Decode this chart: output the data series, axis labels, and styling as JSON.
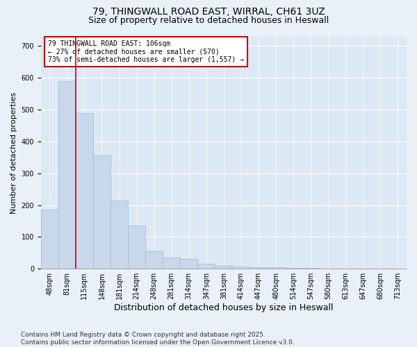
{
  "title1": "79, THINGWALL ROAD EAST, WIRRAL, CH61 3UZ",
  "title2": "Size of property relative to detached houses in Heswall",
  "xlabel": "Distribution of detached houses by size in Heswall",
  "ylabel": "Number of detached properties",
  "bin_labels": [
    "48sqm",
    "81sqm",
    "115sqm",
    "148sqm",
    "181sqm",
    "214sqm",
    "248sqm",
    "281sqm",
    "314sqm",
    "347sqm",
    "381sqm",
    "414sqm",
    "447sqm",
    "480sqm",
    "514sqm",
    "547sqm",
    "580sqm",
    "613sqm",
    "647sqm",
    "680sqm",
    "713sqm"
  ],
  "bar_heights": [
    185,
    590,
    490,
    355,
    215,
    135,
    55,
    35,
    30,
    15,
    10,
    7,
    5,
    4,
    3,
    2,
    1,
    1,
    0,
    0,
    0
  ],
  "bar_color": "#c8d8ea",
  "bar_edgecolor": "#a0b8cc",
  "bar_linewidth": 0.5,
  "vline_x_index": 1,
  "vline_color": "#cc0000",
  "annotation_text": "79 THINGWALL ROAD EAST: 106sqm\n← 27% of detached houses are smaller (570)\n73% of semi-detached houses are larger (1,557) →",
  "annotation_box_edgecolor": "#cc0000",
  "annotation_box_facecolor": "#ffffff",
  "ylim": [
    0,
    730
  ],
  "yticks": [
    0,
    100,
    200,
    300,
    400,
    500,
    600,
    700
  ],
  "plot_bg_color": "#dce8f4",
  "fig_bg_color": "#e8f0f8",
  "footer_text": "Contains HM Land Registry data © Crown copyright and database right 2025.\nContains public sector information licensed under the Open Government Licence v3.0.",
  "title_fontsize": 10,
  "subtitle_fontsize": 9,
  "xlabel_fontsize": 9,
  "ylabel_fontsize": 8,
  "tick_fontsize": 7,
  "annot_fontsize": 7,
  "footer_fontsize": 6.5
}
